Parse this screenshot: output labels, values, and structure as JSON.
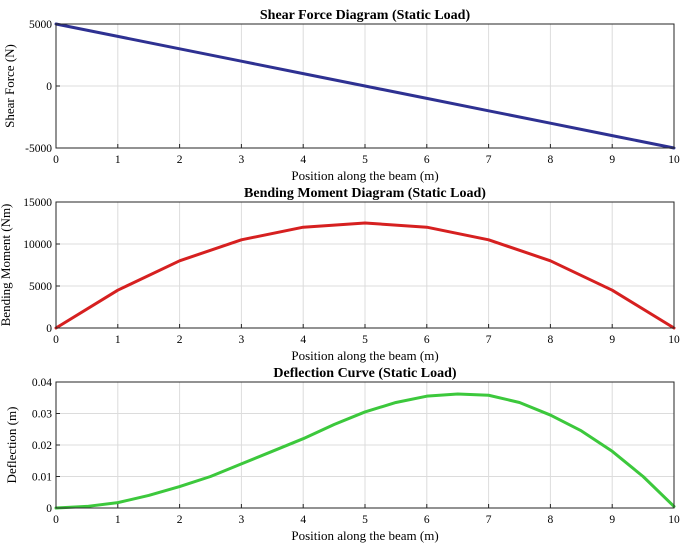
{
  "chart_data": [
    {
      "type": "line",
      "title": "Shear Force Diagram (Static Load)",
      "xlabel": "Position along the beam (m)",
      "ylabel": "Shear Force (N)",
      "xlim": [
        0,
        10
      ],
      "ylim": [
        -5000,
        5000
      ],
      "xticks": [
        0,
        1,
        2,
        3,
        4,
        5,
        6,
        7,
        8,
        9,
        10
      ],
      "yticks": [
        -5000,
        0,
        5000
      ],
      "grid": true,
      "color": "#2e3192",
      "series": [
        {
          "x": [
            0,
            1,
            2,
            3,
            4,
            5,
            6,
            7,
            8,
            9,
            10
          ],
          "y": [
            5000,
            4000,
            3000,
            2000,
            1000,
            0,
            -1000,
            -2000,
            -3000,
            -4000,
            -5000
          ]
        }
      ]
    },
    {
      "type": "line",
      "title": "Bending Moment Diagram (Static Load)",
      "xlabel": "Position along the beam (m)",
      "ylabel": "Bending Moment (Nm)",
      "xlim": [
        0,
        10
      ],
      "ylim": [
        0,
        15000
      ],
      "xticks": [
        0,
        1,
        2,
        3,
        4,
        5,
        6,
        7,
        8,
        9,
        10
      ],
      "yticks": [
        0,
        5000,
        10000,
        15000
      ],
      "grid": true,
      "color": "#d62020",
      "series": [
        {
          "x": [
            0,
            1,
            2,
            3,
            4,
            5,
            6,
            7,
            8,
            9,
            10
          ],
          "y": [
            0,
            4500,
            8000,
            10500,
            12000,
            12500,
            12000,
            10500,
            8000,
            4500,
            0
          ]
        }
      ]
    },
    {
      "type": "line",
      "title": "Deflection Curve (Static Load)",
      "xlabel": "Position along the beam (m)",
      "ylabel": "Deflection (m)",
      "xlim": [
        0,
        10
      ],
      "ylim": [
        0,
        0.04
      ],
      "xticks": [
        0,
        1,
        2,
        3,
        4,
        5,
        6,
        7,
        8,
        9,
        10
      ],
      "yticks": [
        0,
        0.01,
        0.02,
        0.03,
        0.04
      ],
      "grid": true,
      "color": "#3cc83c",
      "series": [
        {
          "x": [
            0,
            0.5,
            1,
            1.5,
            2,
            2.5,
            3,
            3.5,
            4,
            4.5,
            5,
            5.5,
            6,
            6.5,
            7,
            7.5,
            8,
            8.5,
            9,
            9.5,
            10
          ],
          "y": [
            0,
            0.0005,
            0.0017,
            0.004,
            0.0068,
            0.01,
            0.014,
            0.018,
            0.022,
            0.0265,
            0.0305,
            0.0335,
            0.0355,
            0.0362,
            0.0358,
            0.0335,
            0.0295,
            0.0245,
            0.018,
            0.01,
            0.0005
          ]
        }
      ]
    }
  ]
}
